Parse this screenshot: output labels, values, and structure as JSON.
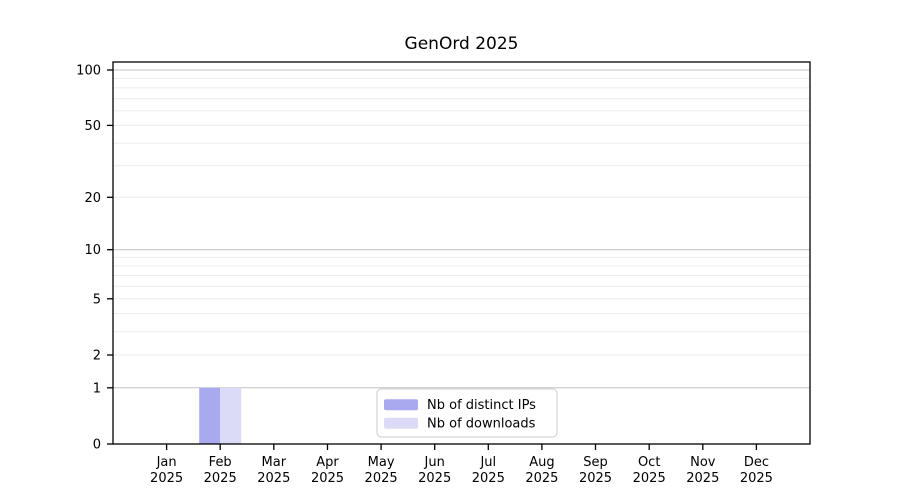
{
  "chart_data": {
    "type": "bar",
    "title": "GenOrd 2025",
    "categories": [
      "Jan 2025",
      "Feb 2025",
      "Mar 2025",
      "Apr 2025",
      "May 2025",
      "Jun 2025",
      "Jul 2025",
      "Aug 2025",
      "Sep 2025",
      "Oct 2025",
      "Nov 2025",
      "Dec 2025"
    ],
    "x_ticks": [
      {
        "line1": "Jan",
        "line2": "2025"
      },
      {
        "line1": "Feb",
        "line2": "2025"
      },
      {
        "line1": "Mar",
        "line2": "2025"
      },
      {
        "line1": "Apr",
        "line2": "2025"
      },
      {
        "line1": "May",
        "line2": "2025"
      },
      {
        "line1": "Jun",
        "line2": "2025"
      },
      {
        "line1": "Jul",
        "line2": "2025"
      },
      {
        "line1": "Aug",
        "line2": "2025"
      },
      {
        "line1": "Sep",
        "line2": "2025"
      },
      {
        "line1": "Oct",
        "line2": "2025"
      },
      {
        "line1": "Nov",
        "line2": "2025"
      },
      {
        "line1": "Dec",
        "line2": "2025"
      }
    ],
    "series": [
      {
        "name": "Nb of distinct IPs",
        "color": "#a9a9f0",
        "values": [
          0,
          1,
          0,
          0,
          0,
          0,
          0,
          0,
          0,
          0,
          0,
          0
        ]
      },
      {
        "name": "Nb of downloads",
        "color": "#dbdbf8",
        "values": [
          0,
          1,
          0,
          0,
          0,
          0,
          0,
          0,
          0,
          0,
          0,
          0
        ]
      }
    ],
    "yscale": "log1p",
    "yticks": [
      0,
      1,
      2,
      5,
      10,
      20,
      50,
      100
    ],
    "minor_gridline_values": [
      3,
      4,
      6,
      7,
      8,
      9,
      30,
      40,
      60,
      70,
      80,
      90
    ],
    "major_gridline_values": [
      1,
      10,
      100
    ],
    "ylim": [
      0,
      112
    ],
    "grid": true,
    "legend_position": "lower center inside",
    "colors": {
      "major_grid": "#c2c2c2",
      "minor_grid": "#ebebeb",
      "axis": "#000000",
      "legend_border": "#cccccc",
      "legend_background": "#ffffff"
    }
  }
}
